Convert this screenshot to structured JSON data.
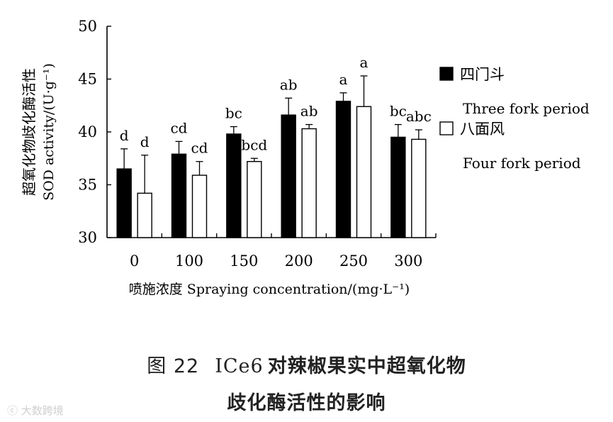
{
  "chart_data": {
    "type": "bar",
    "xlabel": "喷施浓度 Spraying concentration/(mg·L⁻¹)",
    "ylabel_cn": "超氧化物歧化酶活性",
    "ylabel_en": "SOD activity/(U·g⁻¹)",
    "ylim": [
      30,
      50
    ],
    "yticks": [
      "30",
      "35",
      "40",
      "45",
      "50"
    ],
    "categories": [
      "0",
      "100",
      "150",
      "200",
      "250",
      "300"
    ],
    "series": [
      {
        "name": "四门斗",
        "name_en": "Three fork period",
        "fill": "#000000",
        "values": [
          36.5,
          37.9,
          39.8,
          41.6,
          42.9,
          39.5
        ],
        "errors": [
          1.9,
          1.2,
          0.7,
          1.6,
          0.8,
          1.2
        ],
        "letters": [
          "d",
          "cd",
          "bc",
          "ab",
          "a",
          "bc"
        ]
      },
      {
        "name": "八面风",
        "name_en": "Four fork period",
        "fill": "#ffffff",
        "values": [
          34.2,
          35.9,
          37.2,
          40.3,
          42.4,
          39.3
        ],
        "errors": [
          3.6,
          1.3,
          0.3,
          0.4,
          2.9,
          0.9
        ],
        "letters": [
          "d",
          "cd",
          "bcd",
          "ab",
          "a",
          "abc"
        ]
      }
    ],
    "grid": false,
    "legend_position": "right"
  },
  "caption": {
    "fig_label": "图 22",
    "title_code": "ICe6",
    "title_line1": "对辣椒果实中超氧化物",
    "title_line2": "歧化酶活性的影响"
  },
  "watermark": "大数跨境"
}
